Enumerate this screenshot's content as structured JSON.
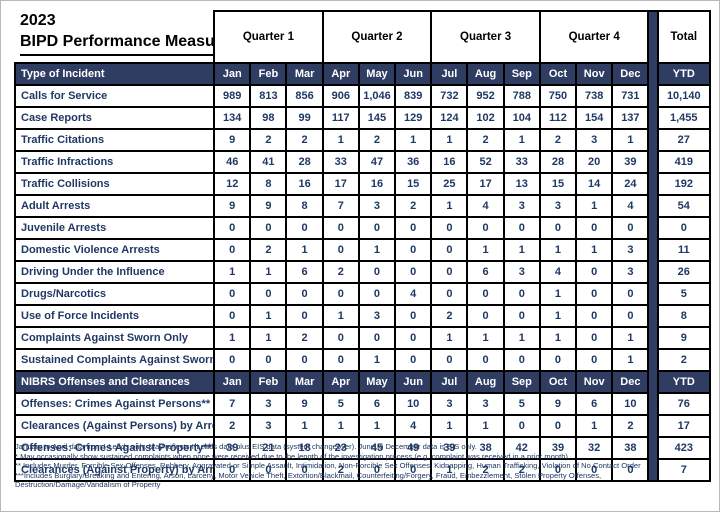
{
  "title": {
    "year": "2023",
    "name": "BIPD Performance Measures"
  },
  "table": {
    "quarters": [
      "Quarter 1",
      "Quarter 2",
      "Quarter 3",
      "Quarter 4"
    ],
    "total_label": "Total",
    "ytd_label": "YTD",
    "months": [
      "Jan",
      "Feb",
      "Mar",
      "Apr",
      "May",
      "Jun",
      "Jul",
      "Aug",
      "Sep",
      "Oct",
      "Nov",
      "Dec"
    ],
    "incident_section": {
      "header": "Type of Incident",
      "rows": [
        {
          "label": "Calls for Service",
          "values": [
            "989",
            "813",
            "856",
            "906",
            "1,046",
            "839",
            "732",
            "952",
            "788",
            "750",
            "738",
            "731"
          ],
          "ytd": "10,140"
        },
        {
          "label": "Case Reports",
          "values": [
            "134",
            "98",
            "99",
            "117",
            "145",
            "129",
            "124",
            "102",
            "104",
            "112",
            "154",
            "137"
          ],
          "ytd": "1,455"
        },
        {
          "label": "Traffic Citations",
          "values": [
            "9",
            "2",
            "2",
            "1",
            "2",
            "1",
            "1",
            "2",
            "1",
            "2",
            "3",
            "1"
          ],
          "ytd": "27"
        },
        {
          "label": "Traffic Infractions",
          "values": [
            "46",
            "41",
            "28",
            "33",
            "47",
            "36",
            "16",
            "52",
            "33",
            "28",
            "20",
            "39"
          ],
          "ytd": "419"
        },
        {
          "label": "Traffic Collisions",
          "values": [
            "12",
            "8",
            "16",
            "17",
            "16",
            "15",
            "25",
            "17",
            "13",
            "15",
            "14",
            "24"
          ],
          "ytd": "192"
        },
        {
          "label": "Adult Arrests",
          "values": [
            "9",
            "9",
            "8",
            "7",
            "3",
            "2",
            "1",
            "4",
            "3",
            "3",
            "1",
            "4"
          ],
          "ytd": "54"
        },
        {
          "label": "Juvenile Arrests",
          "values": [
            "0",
            "0",
            "0",
            "0",
            "0",
            "0",
            "0",
            "0",
            "0",
            "0",
            "0",
            "0"
          ],
          "ytd": "0"
        },
        {
          "label": "Domestic Violence Arrests",
          "values": [
            "0",
            "2",
            "1",
            "0",
            "1",
            "0",
            "0",
            "1",
            "1",
            "1",
            "1",
            "3"
          ],
          "ytd": "11"
        },
        {
          "label": "Driving Under the Influence",
          "values": [
            "1",
            "1",
            "6",
            "2",
            "0",
            "0",
            "0",
            "6",
            "3",
            "4",
            "0",
            "3"
          ],
          "ytd": "26"
        },
        {
          "label": "Drugs/Narcotics",
          "values": [
            "0",
            "0",
            "0",
            "0",
            "0",
            "4",
            "0",
            "0",
            "0",
            "1",
            "0",
            "0"
          ],
          "ytd": "5"
        },
        {
          "label": "Use of Force Incidents",
          "values": [
            "0",
            "1",
            "0",
            "1",
            "3",
            "0",
            "2",
            "0",
            "0",
            "1",
            "0",
            "0"
          ],
          "ytd": "8"
        },
        {
          "label": "Complaints Against Sworn Only",
          "values": [
            "1",
            "1",
            "2",
            "0",
            "0",
            "0",
            "1",
            "1",
            "1",
            "1",
            "0",
            "1"
          ],
          "ytd": "9"
        },
        {
          "label": "Sustained Complaints Against Sworn*",
          "values": [
            "0",
            "0",
            "0",
            "0",
            "1",
            "0",
            "0",
            "0",
            "0",
            "0",
            "0",
            "1"
          ],
          "ytd": "2"
        }
      ]
    },
    "nibrs_section": {
      "header": "NIBRS Offenses and Clearances",
      "rows": [
        {
          "label": "Offenses: Crimes Against Persons**",
          "values": [
            "7",
            "3",
            "9",
            "5",
            "6",
            "10",
            "3",
            "3",
            "5",
            "9",
            "6",
            "10"
          ],
          "ytd": "76"
        },
        {
          "label": "Clearances (Against Persons) by Arrest",
          "values": [
            "2",
            "3",
            "1",
            "1",
            "1",
            "4",
            "1",
            "1",
            "0",
            "0",
            "1",
            "2"
          ],
          "ytd": "17"
        },
        {
          "label": "Offenses: Crimes Against Property***",
          "values": [
            "39",
            "21",
            "18",
            "23",
            "45",
            "49",
            "39",
            "38",
            "42",
            "39",
            "32",
            "38"
          ],
          "ytd": "423"
        },
        {
          "label": "Clearances (Against Property) by Arrest",
          "values": [
            "0",
            "0",
            "0",
            "2",
            "0",
            "0",
            "1",
            "2",
            "2",
            "0",
            "0",
            "0"
          ],
          "ytd": "7"
        }
      ]
    }
  },
  "footnotes": [
    "January to April data from I-Leads only. May reflects I-Leads data plus EIS data (system changeover). June to December data is EIS only.",
    "* May occasionally show sustained complaints when none were received due to the length of the investigation process (e.g. complaint was received in a prior month).",
    "** Includes Murder, Forcible Sex Offenses, Robbery, Aggravated or Simple Assault, Intimidation, Non-Forcible Sex Offenses, Kidnapping, Human Trafficking, Violation of No Contact Order",
    "***Includes Burglary/Breaking and Entering, Arson, Larceny, Motor Vehicle Theft, Extortion/Blackmail, Counterfeiting/Forgery, Fraud, Embezzlement, Stolen Property Offenses,",
    "Destruction/Damage/Vandalism of Property"
  ],
  "colors": {
    "header_navy": "#2F3D63",
    "value_text": "#1F3864"
  }
}
